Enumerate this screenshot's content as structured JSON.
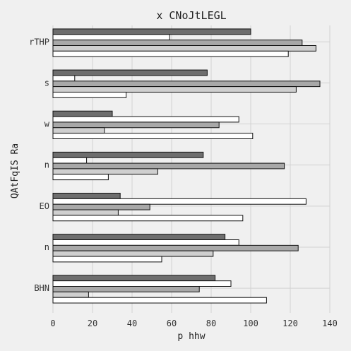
{
  "chart_data": {
    "type": "bar",
    "orientation": "horizontal",
    "title": "x CNoJtLEGL",
    "xlabel": "p hhw",
    "ylabel": "QAtFqIS Ra",
    "xlim": [
      0,
      140
    ],
    "xticks": [
      0,
      20,
      40,
      60,
      80,
      100,
      120,
      140
    ],
    "grid": true,
    "categories": [
      "rTHP",
      "s",
      "w",
      "n",
      "EO",
      "n",
      "BHN"
    ],
    "series": [
      {
        "color": "#6e6e6e",
        "values": [
          100,
          78,
          30,
          76,
          34,
          87,
          82
        ]
      },
      {
        "color": "#ffffff",
        "values": [
          59,
          11,
          94,
          17,
          128,
          94,
          90
        ]
      },
      {
        "color": "#a8a8a8",
        "values": [
          126,
          135,
          84,
          117,
          49,
          124,
          74
        ]
      },
      {
        "color": "#cfcfcf",
        "values": [
          133,
          123,
          26,
          53,
          33,
          81,
          18
        ]
      },
      {
        "color": "#ffffff",
        "values": [
          119,
          37,
          101,
          28,
          96,
          55,
          108
        ]
      }
    ]
  }
}
